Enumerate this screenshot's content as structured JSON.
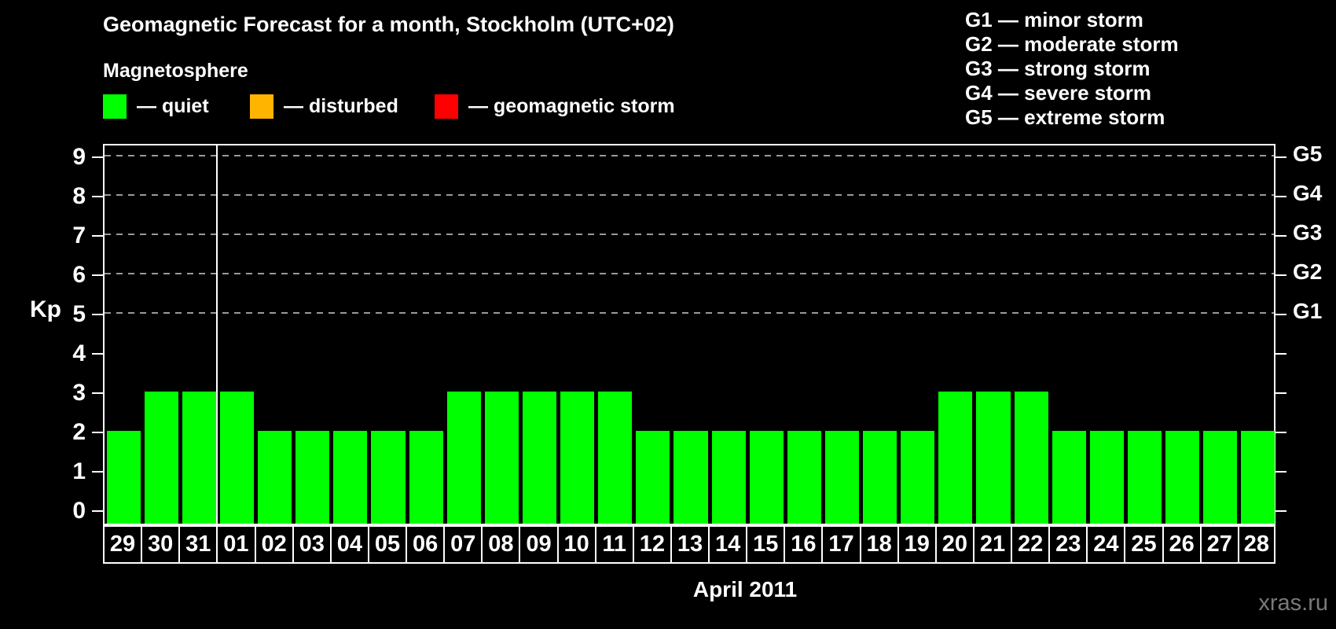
{
  "header": {
    "title": "Geomagnetic Forecast for a month, Stockholm (UTC+02)"
  },
  "magnetosphere_legend": {
    "title": "Magnetosphere",
    "items": [
      {
        "key": "quiet",
        "label": "— quiet",
        "color": "#00ff00"
      },
      {
        "key": "disturbed",
        "label": "— disturbed",
        "color": "#ffb400"
      },
      {
        "key": "storm",
        "label": "— geomagnetic storm",
        "color": "#ff0000"
      }
    ]
  },
  "storm_scale_legend": {
    "items": [
      "G1 — minor storm",
      "G2 — moderate storm",
      "G3 — strong storm",
      "G4 — severe storm",
      "G5 — extreme storm"
    ]
  },
  "footer": {
    "month_label": "April 2011",
    "watermark": "xras.ru"
  },
  "chart_data": {
    "type": "bar",
    "title": "Geomagnetic Forecast for a month, Stockholm (UTC+02)",
    "ylabel": "Kp",
    "xlabel": "April 2011",
    "categories": [
      "29",
      "30",
      "31",
      "01",
      "02",
      "03",
      "04",
      "05",
      "06",
      "07",
      "08",
      "09",
      "10",
      "11",
      "12",
      "13",
      "14",
      "15",
      "16",
      "17",
      "18",
      "19",
      "20",
      "21",
      "22",
      "23",
      "24",
      "25",
      "26",
      "27",
      "28"
    ],
    "values": [
      2,
      3,
      3,
      3,
      2,
      2,
      2,
      2,
      2,
      3,
      3,
      3,
      3,
      3,
      2,
      2,
      2,
      2,
      2,
      2,
      2,
      2,
      3,
      3,
      3,
      2,
      2,
      2,
      2,
      2,
      2
    ],
    "ylim": [
      0,
      9
    ],
    "yticks": [
      0,
      1,
      2,
      3,
      4,
      5,
      6,
      7,
      8,
      9
    ],
    "gridlines": [
      5,
      6,
      7,
      8,
      9
    ],
    "gridline_style": "dashed",
    "right_axis_labels": [
      "G1",
      "G2",
      "G3",
      "G4",
      "G5"
    ],
    "right_axis_levels": [
      5,
      6,
      7,
      8,
      9
    ],
    "separator_after_category": "31",
    "colors": {
      "quiet": "#00ff00",
      "disturbed": "#ffb400",
      "storm": "#ff0000"
    },
    "quiet_max_kp": 3,
    "disturbed_max_kp": 4,
    "frame_color": "#ffffff",
    "background_color": "#000000",
    "legend_position": "top"
  }
}
